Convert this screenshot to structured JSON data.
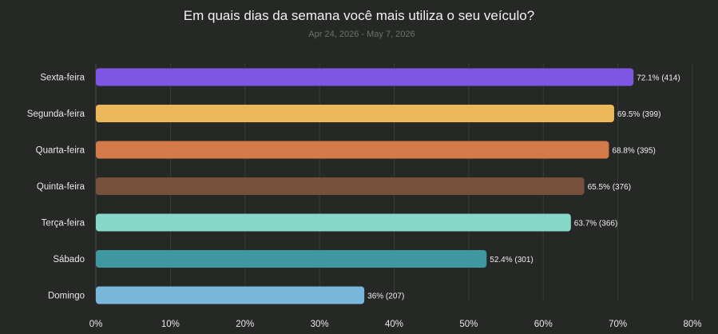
{
  "chart_data": {
    "type": "bar",
    "orientation": "horizontal",
    "title": "Em quais dias da semana você mais utiliza o seu veículo?",
    "subtitle": "Apr 24, 2026 - May 7, 2026",
    "xlabel": "",
    "ylabel": "",
    "xlim": [
      0,
      80
    ],
    "x_ticks": [
      "0%",
      "10%",
      "20%",
      "30%",
      "40%",
      "50%",
      "60%",
      "70%",
      "80%"
    ],
    "grid": true,
    "categories": [
      "Sexta-feira",
      "Segunda-feira",
      "Quarta-feira",
      "Quinta-feira",
      "Terça-feira",
      "Sábado",
      "Domingo"
    ],
    "values": [
      72.1,
      69.5,
      68.8,
      65.5,
      63.7,
      52.4,
      36
    ],
    "counts": [
      414,
      399,
      395,
      376,
      366,
      301,
      207
    ],
    "value_labels": [
      "72.1% (414)",
      "69.5% (399)",
      "68.8% (395)",
      "65.5% (376)",
      "63.7% (366)",
      "52.4% (301)",
      "36% (207)"
    ],
    "colors": [
      "#7b57e4",
      "#ebb95a",
      "#d27a4a",
      "#75503d",
      "#86d9c9",
      "#3f979f",
      "#79b8dc"
    ]
  }
}
